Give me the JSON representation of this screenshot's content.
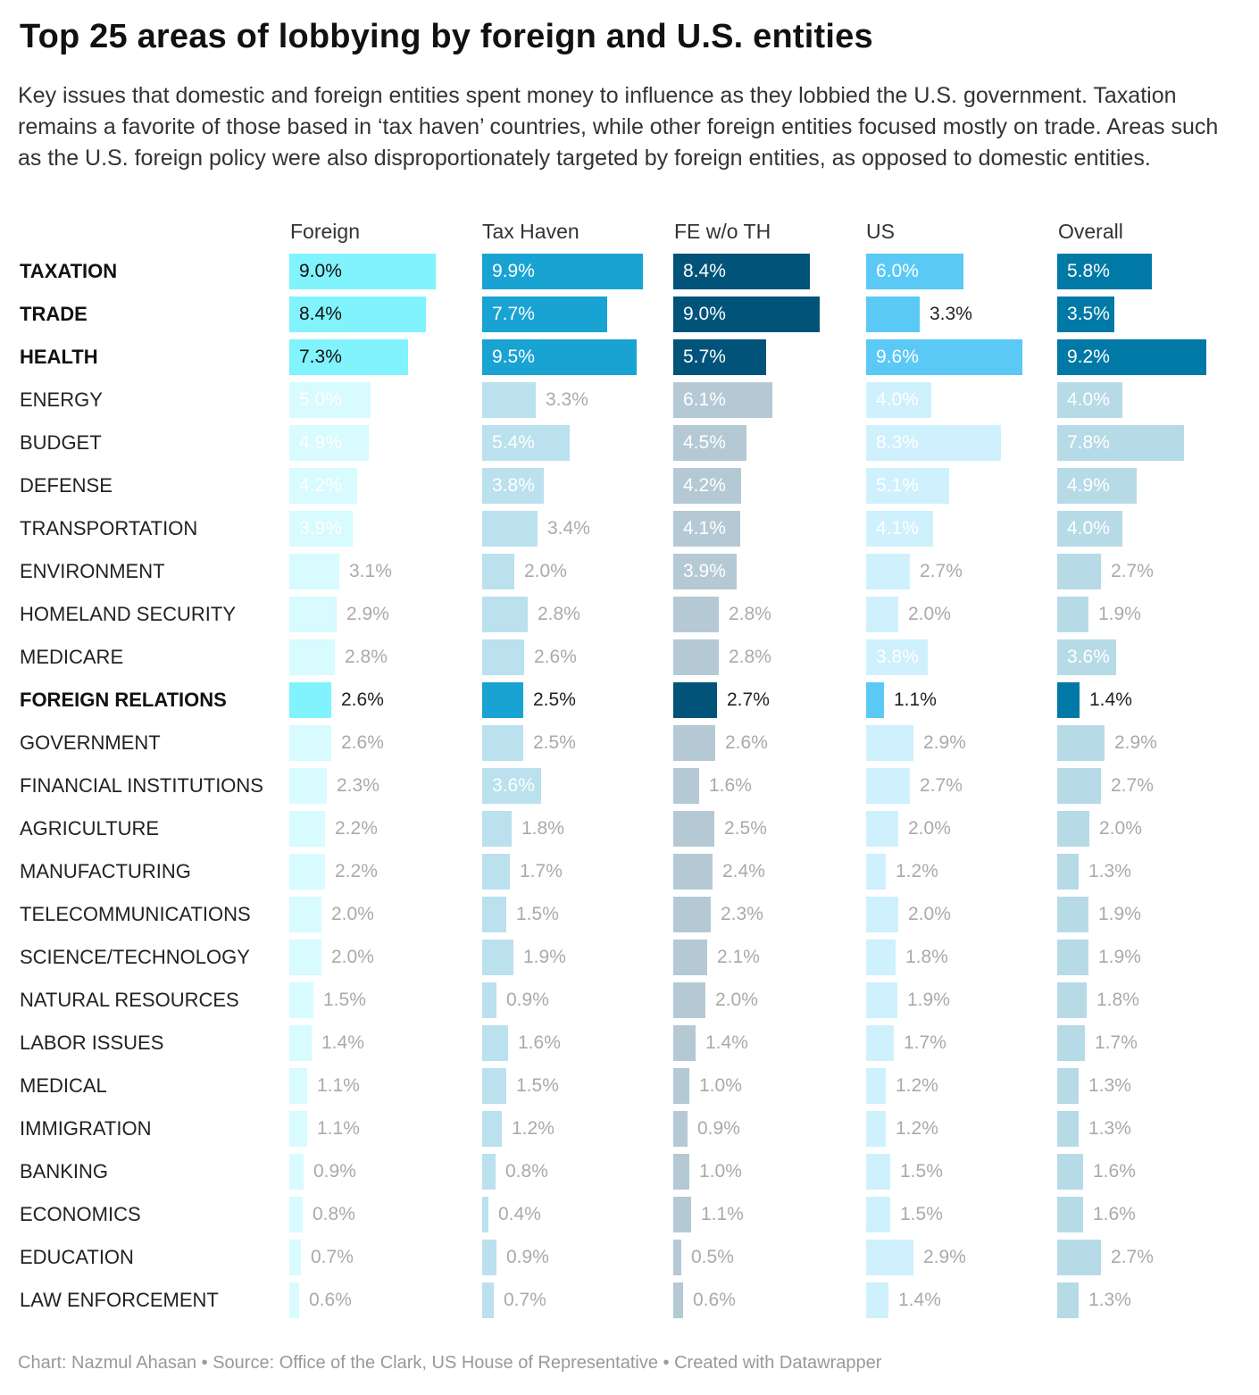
{
  "title": "Top 25 areas of lobbying by foreign and U.S. entities",
  "subtitle": "Key issues that domestic and foreign entities spent money to influence as they lobbied the U.S. government. Taxation remains a favorite of those based in ‘tax haven’ countries, while other foreign entities focused mostly on trade. Areas such as the U.S. foreign policy were also disproportionately targeted by foreign entities, as opposed to domestic entities.",
  "footer": "Chart: Nazmul Ahasan • Source: Office of the Clark, US House of Representative • Created with Datawrapper",
  "chart_data": {
    "type": "bar",
    "categories": [
      "TAXATION",
      "TRADE",
      "HEALTH",
      "ENERGY",
      "BUDGET",
      "DEFENSE",
      "TRANSPORTATION",
      "ENVIRONMENT",
      "HOMELAND SECURITY",
      "MEDICARE",
      "FOREIGN RELATIONS",
      "GOVERNMENT",
      "FINANCIAL INSTITUTIONS",
      "AGRICULTURE",
      "MANUFACTURING",
      "TELECOMMUNICATIONS",
      "SCIENCE/TECHNOLOGY",
      "NATURAL RESOURCES",
      "LABOR ISSUES",
      "MEDICAL",
      "IMMIGRATION",
      "BANKING",
      "ECONOMICS",
      "EDUCATION",
      "LAW ENFORCEMENT"
    ],
    "highlighted": [
      "TAXATION",
      "TRADE",
      "HEALTH",
      "FOREIGN RELATIONS"
    ],
    "unit": "%",
    "series": [
      {
        "name": "Foreign",
        "color": "#80f3fd",
        "muted_color": "#d7fbfe",
        "values": [
          9.0,
          8.4,
          7.3,
          5.0,
          4.9,
          4.2,
          3.9,
          3.1,
          2.9,
          2.8,
          2.6,
          2.6,
          2.3,
          2.2,
          2.2,
          2.0,
          2.0,
          1.5,
          1.4,
          1.1,
          1.1,
          0.9,
          0.8,
          0.7,
          0.6
        ]
      },
      {
        "name": "Tax Haven",
        "color": "#19a3d2",
        "muted_color": "#bae1ed",
        "values": [
          9.9,
          7.7,
          9.5,
          3.3,
          5.4,
          3.8,
          3.4,
          2.0,
          2.8,
          2.6,
          2.5,
          2.5,
          3.6,
          1.8,
          1.7,
          1.5,
          1.9,
          0.9,
          1.6,
          1.5,
          1.2,
          0.8,
          0.4,
          0.9,
          0.7
        ]
      },
      {
        "name": "FE w/o TH",
        "color": "#01537a",
        "muted_color": "#b4c9d4",
        "values": [
          8.4,
          9.0,
          5.7,
          6.1,
          4.5,
          4.2,
          4.1,
          3.9,
          2.8,
          2.8,
          2.7,
          2.6,
          1.6,
          2.5,
          2.4,
          2.3,
          2.1,
          2.0,
          1.4,
          1.0,
          0.9,
          1.0,
          1.1,
          0.5,
          0.6
        ]
      },
      {
        "name": "US",
        "color": "#5ac9f5",
        "muted_color": "#cff0fd",
        "values": [
          6.0,
          3.3,
          9.6,
          4.0,
          8.3,
          5.1,
          4.1,
          2.7,
          2.0,
          3.8,
          1.1,
          2.9,
          2.7,
          2.0,
          1.2,
          2.0,
          1.8,
          1.9,
          1.7,
          1.2,
          1.2,
          1.5,
          1.5,
          2.9,
          1.4
        ]
      },
      {
        "name": "Overall",
        "color": "#0179a6",
        "muted_color": "#b7dae7",
        "values": [
          5.8,
          3.5,
          9.2,
          4.0,
          7.8,
          4.9,
          4.0,
          2.7,
          1.9,
          3.6,
          1.4,
          2.9,
          2.7,
          2.0,
          1.3,
          1.9,
          1.9,
          1.8,
          1.7,
          1.3,
          1.3,
          1.6,
          1.6,
          2.7,
          1.3
        ]
      }
    ],
    "value_labels": {
      "highlight_inside_dark": "#111111",
      "highlight_inside_light": "#ffffff",
      "highlight_outside": "#222222",
      "muted_inside": "#ffffff",
      "muted_outside": "#aaaaaa"
    }
  }
}
